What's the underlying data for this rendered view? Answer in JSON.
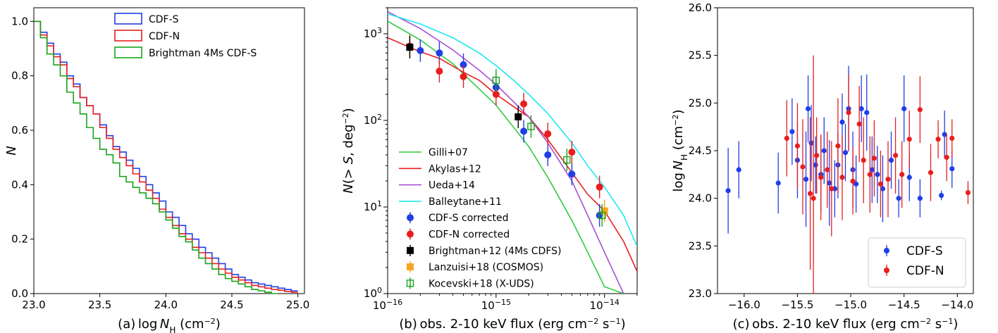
{
  "chart_data": [
    {
      "type": "step",
      "panel_label": "(a)",
      "xlabel": "log N_H (cm^-2)",
      "ylabel": "N",
      "xlim": [
        23.0,
        25.05
      ],
      "ylim": [
        0,
        1.05
      ],
      "xticks": [
        "23.0",
        "23.5",
        "24.0",
        "24.5",
        "25.0"
      ],
      "yticks": [
        "0.0",
        "0.2",
        "0.4",
        "0.6",
        "0.8",
        "1.0"
      ],
      "legend_position": "top-right",
      "series": [
        {
          "name": "CDF-S",
          "color": "#1f3fe6",
          "x": [
            23.0,
            23.05,
            23.1,
            23.15,
            23.2,
            23.25,
            23.3,
            23.35,
            23.4,
            23.45,
            23.5,
            23.55,
            23.6,
            23.65,
            23.7,
            23.75,
            23.8,
            23.85,
            23.9,
            23.95,
            24.0,
            24.05,
            24.1,
            24.15,
            24.2,
            24.25,
            24.3,
            24.35,
            24.4,
            24.45,
            24.5,
            24.55,
            24.6,
            24.65,
            24.7,
            24.75,
            24.8,
            24.85,
            24.9,
            24.95
          ],
          "y": [
            1.0,
            0.96,
            0.92,
            0.88,
            0.85,
            0.8,
            0.77,
            0.72,
            0.69,
            0.66,
            0.62,
            0.58,
            0.54,
            0.52,
            0.49,
            0.46,
            0.43,
            0.4,
            0.37,
            0.34,
            0.3,
            0.28,
            0.25,
            0.22,
            0.2,
            0.17,
            0.15,
            0.13,
            0.11,
            0.09,
            0.07,
            0.06,
            0.05,
            0.04,
            0.035,
            0.03,
            0.025,
            0.02,
            0.015,
            0.01
          ]
        },
        {
          "name": "CDF-N",
          "color": "#e81e1e",
          "x": [
            23.0,
            23.05,
            23.1,
            23.15,
            23.2,
            23.25,
            23.3,
            23.35,
            23.4,
            23.45,
            23.5,
            23.55,
            23.6,
            23.65,
            23.7,
            23.75,
            23.8,
            23.85,
            23.9,
            23.95,
            24.0,
            24.05,
            24.1,
            24.15,
            24.2,
            24.25,
            24.3,
            24.35,
            24.4,
            24.45,
            24.5,
            24.55,
            24.6,
            24.65,
            24.7,
            24.75,
            24.8,
            24.85,
            24.9,
            24.95
          ],
          "y": [
            1.0,
            0.95,
            0.91,
            0.87,
            0.84,
            0.79,
            0.76,
            0.72,
            0.69,
            0.66,
            0.61,
            0.57,
            0.53,
            0.5,
            0.47,
            0.44,
            0.41,
            0.38,
            0.35,
            0.31,
            0.28,
            0.25,
            0.22,
            0.2,
            0.17,
            0.15,
            0.13,
            0.11,
            0.09,
            0.075,
            0.06,
            0.05,
            0.04,
            0.03,
            0.025,
            0.02,
            0.015,
            0.012,
            0.008,
            0.005
          ]
        },
        {
          "name": "Brightman 4Ms CDF-S",
          "color": "#1aa31a",
          "x": [
            23.0,
            23.05,
            23.1,
            23.15,
            23.2,
            23.25,
            23.3,
            23.35,
            23.4,
            23.45,
            23.5,
            23.55,
            23.6,
            23.65,
            23.7,
            23.75,
            23.8,
            23.85,
            23.9,
            23.95,
            24.0,
            24.05,
            24.1,
            24.15,
            24.2,
            24.25,
            24.3,
            24.35,
            24.4,
            24.45,
            24.5,
            24.55,
            24.6,
            24.65,
            24.7,
            24.75,
            24.8
          ],
          "y": [
            1.0,
            0.94,
            0.88,
            0.84,
            0.8,
            0.74,
            0.7,
            0.66,
            0.61,
            0.57,
            0.53,
            0.51,
            0.48,
            0.43,
            0.41,
            0.39,
            0.37,
            0.35,
            0.33,
            0.3,
            0.27,
            0.24,
            0.21,
            0.19,
            0.16,
            0.13,
            0.11,
            0.09,
            0.07,
            0.055,
            0.045,
            0.035,
            0.025,
            0.015,
            0.01,
            0.005,
            0.0
          ]
        }
      ]
    },
    {
      "type": "line+scatter",
      "panel_label": "(b)",
      "xlabel": "obs. 2-10 keV flux (erg cm^-2 s^-1)",
      "ylabel": "N (> S, deg^-2)",
      "xscale": "log",
      "yscale": "log",
      "xlim": [
        1e-16,
        2e-14
      ],
      "ylim": [
        1,
        2000
      ],
      "xticks": [
        "10^-16",
        "10^-15",
        "10^-14"
      ],
      "yticks": [
        "1",
        "10",
        "100",
        "1000"
      ],
      "legend_position": "lower-left",
      "lines": [
        {
          "name": "Gilli+07",
          "color": "#2ecc40",
          "x": [
            1e-16,
            2e-16,
            4e-16,
            7e-16,
            1e-15,
            2e-15,
            3e-15,
            5e-15,
            7e-15,
            1e-14,
            1.5e-14
          ],
          "y": [
            1400,
            850,
            450,
            230,
            150,
            50,
            22,
            7,
            3,
            1.2,
            1.0
          ]
        },
        {
          "name": "Akylas+12",
          "color": "#e81e1e",
          "x": [
            1e-16,
            2e-16,
            3e-16,
            5e-16,
            7e-16,
            1e-15,
            1.5e-15,
            2e-15,
            3e-15,
            5e-15,
            7e-15,
            1e-14,
            1.5e-14,
            2e-14
          ],
          "y": [
            900,
            620,
            520,
            360,
            290,
            200,
            140,
            110,
            60,
            25,
            14,
            9,
            4,
            1.8
          ]
        },
        {
          "name": "Ueda+14",
          "color": "#a64fd6",
          "x": [
            1e-16,
            2e-16,
            4e-16,
            7e-16,
            1e-15,
            2e-15,
            3e-15,
            5e-15,
            7e-15,
            1e-14,
            1.5e-14
          ],
          "y": [
            1800,
            1150,
            650,
            380,
            260,
            110,
            55,
            20,
            8,
            3,
            1.0
          ]
        },
        {
          "name": "Balleytane+11",
          "color": "#1ee8f0",
          "x": [
            1e-16,
            2e-16,
            4e-16,
            7e-16,
            1e-15,
            1.5e-15,
            2e-15,
            3e-15,
            5e-15,
            7e-15,
            1e-14,
            1.5e-14,
            2e-14
          ],
          "y": [
            1700,
            1300,
            900,
            600,
            430,
            280,
            200,
            120,
            55,
            30,
            17,
            8,
            3.5
          ]
        }
      ],
      "points": [
        {
          "name": "CDF-S corrected",
          "color": "#1f3fe6",
          "marker": "circle",
          "x": [
            2e-16,
            3e-16,
            5e-16,
            1e-15,
            1.8e-15,
            3e-15,
            5e-15,
            9e-15
          ],
          "y": [
            640,
            600,
            440,
            240,
            75,
            40,
            24,
            8
          ]
        },
        {
          "name": "CDF-N corrected",
          "color": "#e81e1e",
          "marker": "circle",
          "x": [
            1.6e-16,
            3e-16,
            5e-16,
            1e-15,
            1.8e-15,
            3e-15,
            5e-15,
            9e-15
          ],
          "y": [
            720,
            370,
            320,
            200,
            155,
            70,
            43,
            17
          ]
        },
        {
          "name": "Brightman+12 (4Ms CDFS)",
          "color": "#000000",
          "marker": "square",
          "x": [
            1.6e-16,
            1.6e-15
          ],
          "y": [
            700,
            110
          ]
        },
        {
          "name": "Lanzuisi+18 (COSMOS)",
          "color": "#f5a623",
          "marker": "square",
          "x": [
            1e-14
          ],
          "y": [
            9
          ]
        },
        {
          "name": "Kocevski+18 (X-UDS)",
          "color": "#1aa31a",
          "marker": "open-square",
          "x": [
            1e-15,
            2.1e-15,
            4.5e-15,
            9.5e-15
          ],
          "y": [
            290,
            85,
            35,
            8
          ]
        }
      ]
    },
    {
      "type": "scatter",
      "panel_label": "(c)",
      "xlabel": "obs. 2-10 keV flux (erg cm^-2 s^-1)",
      "ylabel": "log N_H (cm^-2)",
      "xlim": [
        -16.25,
        -13.85
      ],
      "ylim": [
        23.0,
        26.0
      ],
      "xticks": [
        "-16.0",
        "-15.5",
        "-15.0",
        "-14.5",
        "-14.0"
      ],
      "yticks": [
        "23.0",
        "23.5",
        "24.0",
        "24.5",
        "25.0",
        "25.5",
        "26.0"
      ],
      "legend_position": "lower-right",
      "series": [
        {
          "name": "CDF-S",
          "color": "#1f3fe6",
          "x": [
            -16.15,
            -16.05,
            -15.68,
            -15.55,
            -15.5,
            -15.42,
            -15.4,
            -15.37,
            -15.33,
            -15.28,
            -15.25,
            -15.2,
            -15.15,
            -15.12,
            -15.08,
            -15.05,
            -15.02,
            -14.98,
            -14.95,
            -14.9,
            -14.85,
            -14.8,
            -14.75,
            -14.7,
            -14.62,
            -14.55,
            -14.5,
            -14.45,
            -14.35,
            -14.15,
            -14.12,
            -14.05
          ],
          "y": [
            24.08,
            24.3,
            24.16,
            24.7,
            24.4,
            24.2,
            24.94,
            24.58,
            24.35,
            24.25,
            24.5,
            24.16,
            24.1,
            24.35,
            24.8,
            24.48,
            24.94,
            24.3,
            24.15,
            24.94,
            24.9,
            24.3,
            24.25,
            24.1,
            24.4,
            24.0,
            24.94,
            24.22,
            24.0,
            24.03,
            24.67,
            24.31
          ],
          "yerr": [
            0.45,
            0.3,
            0.32,
            0.35,
            0.4,
            0.5,
            0.35,
            0.4,
            0.3,
            0.4,
            0.35,
            0.45,
            0.3,
            0.35,
            0.3,
            0.3,
            0.45,
            0.4,
            0.3,
            0.35,
            0.4,
            0.35,
            0.3,
            0.35,
            0.3,
            0.2,
            0.35,
            0.25,
            0.2,
            0.05,
            0.25,
            0.2
          ]
        },
        {
          "name": "CDF-N",
          "color": "#e81e1e",
          "x": [
            -15.6,
            -15.5,
            -15.45,
            -15.38,
            -15.35,
            -15.32,
            -15.28,
            -15.22,
            -15.18,
            -15.12,
            -15.08,
            -15.02,
            -14.98,
            -14.92,
            -14.88,
            -14.82,
            -14.78,
            -14.72,
            -14.65,
            -14.58,
            -14.52,
            -14.45,
            -14.35,
            -14.25,
            -14.18,
            -14.1,
            -14.05,
            -13.9
          ],
          "y": [
            24.63,
            24.55,
            24.33,
            24.05,
            24.0,
            24.45,
            24.22,
            24.3,
            24.1,
            24.55,
            24.22,
            24.9,
            24.18,
            24.78,
            24.4,
            24.25,
            24.42,
            24.15,
            24.2,
            24.45,
            24.25,
            24.62,
            24.93,
            24.27,
            24.62,
            24.43,
            24.63,
            24.06
          ],
          "yerr": [
            0.4,
            0.45,
            0.5,
            0.8,
            1.5,
            0.4,
            0.45,
            0.4,
            0.5,
            0.5,
            0.45,
            0.4,
            0.35,
            0.4,
            0.45,
            0.4,
            0.4,
            0.35,
            0.4,
            0.4,
            0.35,
            0.3,
            0.35,
            0.3,
            0.2,
            0.25,
            0.2,
            0.12
          ]
        }
      ]
    }
  ]
}
